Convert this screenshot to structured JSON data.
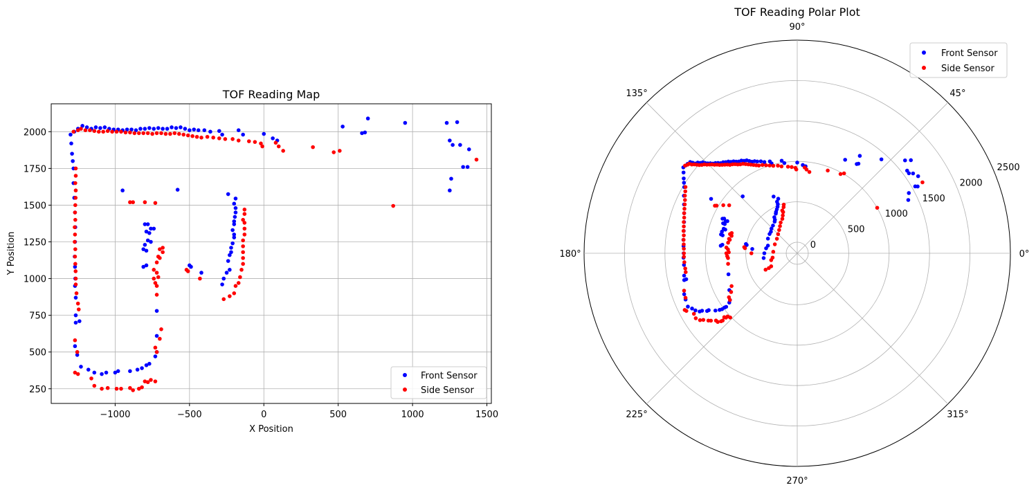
{
  "chart_data": [
    {
      "type": "scatter",
      "title": "TOF Reading Map",
      "xlabel": "X Position",
      "ylabel": "Y Position",
      "xlim": [
        -1430,
        1530
      ],
      "ylim": [
        150,
        2190
      ],
      "xticks": [
        -1000,
        -500,
        0,
        500,
        1000,
        1500
      ],
      "xtick_labels": [
        "−1000",
        "−500",
        "0",
        "500",
        "1000",
        "1500"
      ],
      "yticks": [
        250,
        500,
        750,
        1000,
        1250,
        1500,
        1750,
        2000
      ],
      "ytick_labels": [
        "250",
        "500",
        "750",
        "1000",
        "1250",
        "1500",
        "1750",
        "2000"
      ],
      "grid": true,
      "legend_position": "lower-right",
      "series": [
        {
          "name": "Front Sensor",
          "color": "#0000ff",
          "points": [
            [
              -1300,
              1980
            ],
            [
              -1295,
              1920
            ],
            [
              -1290,
              1850
            ],
            [
              -1285,
              1800
            ],
            [
              -1280,
              1750
            ],
            [
              -1275,
              2000
            ],
            [
              -1250,
              2020
            ],
            [
              -1220,
              2040
            ],
            [
              -1190,
              2030
            ],
            [
              -1160,
              2020
            ],
            [
              -1130,
              2030
            ],
            [
              -1100,
              2025
            ],
            [
              -1070,
              2030
            ],
            [
              -1040,
              2020
            ],
            [
              -1010,
              2015
            ],
            [
              -980,
              2015
            ],
            [
              -950,
              2010
            ],
            [
              -920,
              2015
            ],
            [
              -890,
              2015
            ],
            [
              -860,
              2010
            ],
            [
              -830,
              2020
            ],
            [
              -800,
              2020
            ],
            [
              -770,
              2025
            ],
            [
              -740,
              2020
            ],
            [
              -710,
              2025
            ],
            [
              -680,
              2020
            ],
            [
              -650,
              2020
            ],
            [
              -620,
              2030
            ],
            [
              -590,
              2025
            ],
            [
              -560,
              2030
            ],
            [
              -530,
              2020
            ],
            [
              -500,
              2010
            ],
            [
              -470,
              2015
            ],
            [
              -440,
              2010
            ],
            [
              -400,
              2010
            ],
            [
              -360,
              2000
            ],
            [
              -300,
              2005
            ],
            [
              -280,
              1980
            ],
            [
              -170,
              2010
            ],
            [
              -140,
              1980
            ],
            [
              0,
              1985
            ],
            [
              60,
              1955
            ],
            [
              90,
              1940
            ],
            [
              530,
              2035
            ],
            [
              660,
              1990
            ],
            [
              680,
              1995
            ],
            [
              700,
              2090
            ],
            [
              950,
              2060
            ],
            [
              1230,
              2060
            ],
            [
              1300,
              2065
            ],
            [
              1250,
              1940
            ],
            [
              1270,
              1910
            ],
            [
              1320,
              1910
            ],
            [
              1380,
              1880
            ],
            [
              1340,
              1760
            ],
            [
              1370,
              1760
            ],
            [
              1260,
              1680
            ],
            [
              1250,
              1600
            ],
            [
              -1280,
              1650
            ],
            [
              -1275,
              1550
            ],
            [
              -1270,
              1450
            ],
            [
              -1268,
              1350
            ],
            [
              -1270,
              1250
            ],
            [
              -1272,
              1150
            ],
            [
              -1270,
              1080
            ],
            [
              -1268,
              1000
            ],
            [
              -1270,
              950
            ],
            [
              -1265,
              870
            ],
            [
              -1265,
              750
            ],
            [
              -1265,
              700
            ],
            [
              -1270,
              540
            ],
            [
              -1255,
              480
            ],
            [
              -1240,
              710
            ],
            [
              -1230,
              400
            ],
            [
              -1180,
              380
            ],
            [
              -1140,
              360
            ],
            [
              -1090,
              350
            ],
            [
              -1060,
              360
            ],
            [
              -1000,
              360
            ],
            [
              -980,
              370
            ],
            [
              -900,
              370
            ],
            [
              -850,
              380
            ],
            [
              -820,
              390
            ],
            [
              -790,
              410
            ],
            [
              -770,
              420
            ],
            [
              -730,
              470
            ],
            [
              -720,
              500
            ],
            [
              -720,
              610
            ],
            [
              -720,
              780
            ],
            [
              -950,
              1600
            ],
            [
              -580,
              1605
            ],
            [
              -800,
              1370
            ],
            [
              -780,
              1370
            ],
            [
              -760,
              1340
            ],
            [
              -740,
              1340
            ],
            [
              -790,
              1320
            ],
            [
              -770,
              1310
            ],
            [
              -780,
              1260
            ],
            [
              -760,
              1250
            ],
            [
              -800,
              1230
            ],
            [
              -810,
              1200
            ],
            [
              -790,
              1190
            ],
            [
              -810,
              1080
            ],
            [
              -790,
              1090
            ],
            [
              -500,
              1090
            ],
            [
              -490,
              1080
            ],
            [
              -420,
              1040
            ],
            [
              -240,
              1575
            ],
            [
              -190,
              1545
            ],
            [
              -200,
              1510
            ],
            [
              -190,
              1480
            ],
            [
              -190,
              1450
            ],
            [
              -195,
              1420
            ],
            [
              -200,
              1390
            ],
            [
              -200,
              1370
            ],
            [
              -210,
              1330
            ],
            [
              -200,
              1300
            ],
            [
              -200,
              1280
            ],
            [
              -210,
              1240
            ],
            [
              -220,
              1210
            ],
            [
              -220,
              1180
            ],
            [
              -230,
              1160
            ],
            [
              -240,
              1120
            ],
            [
              -230,
              1060
            ],
            [
              -250,
              1040
            ],
            [
              -270,
              1000
            ],
            [
              -280,
              960
            ]
          ]
        },
        {
          "name": "Side Sensor",
          "color": "#ff0000",
          "points": [
            [
              -1280,
              2000
            ],
            [
              -1250,
              2010
            ],
            [
              -1230,
              2020
            ],
            [
              -1200,
              2010
            ],
            [
              -1170,
              2010
            ],
            [
              -1140,
              2005
            ],
            [
              -1110,
              2000
            ],
            [
              -1080,
              2000
            ],
            [
              -1050,
              2005
            ],
            [
              -1020,
              2000
            ],
            [
              -990,
              2000
            ],
            [
              -960,
              2000
            ],
            [
              -930,
              1995
            ],
            [
              -900,
              1995
            ],
            [
              -870,
              1990
            ],
            [
              -840,
              1990
            ],
            [
              -810,
              1990
            ],
            [
              -780,
              1990
            ],
            [
              -750,
              1985
            ],
            [
              -720,
              1990
            ],
            [
              -690,
              1990
            ],
            [
              -660,
              1985
            ],
            [
              -630,
              1985
            ],
            [
              -600,
              1990
            ],
            [
              -570,
              1985
            ],
            [
              -540,
              1980
            ],
            [
              -510,
              1975
            ],
            [
              -480,
              1970
            ],
            [
              -450,
              1965
            ],
            [
              -420,
              1960
            ],
            [
              -380,
              1965
            ],
            [
              -340,
              1960
            ],
            [
              -300,
              1955
            ],
            [
              -260,
              1950
            ],
            [
              -210,
              1950
            ],
            [
              -170,
              1940
            ],
            [
              -100,
              1935
            ],
            [
              -60,
              1930
            ],
            [
              -20,
              1920
            ],
            [
              -10,
              1900
            ],
            [
              80,
              1925
            ],
            [
              100,
              1900
            ],
            [
              130,
              1870
            ],
            [
              330,
              1895
            ],
            [
              470,
              1860
            ],
            [
              510,
              1870
            ],
            [
              870,
              1495
            ],
            [
              1430,
              1810
            ],
            [
              -1265,
              1750
            ],
            [
              -1265,
              1700
            ],
            [
              -1268,
              1650
            ],
            [
              -1265,
              1600
            ],
            [
              -1266,
              1550
            ],
            [
              -1268,
              1500
            ],
            [
              -1270,
              1450
            ],
            [
              -1268,
              1400
            ],
            [
              -1272,
              1350
            ],
            [
              -1270,
              1300
            ],
            [
              -1272,
              1250
            ],
            [
              -1268,
              1200
            ],
            [
              -1270,
              1150
            ],
            [
              -1268,
              1100
            ],
            [
              -1266,
              1050
            ],
            [
              -1265,
              1000
            ],
            [
              -1265,
              960
            ],
            [
              -1260,
              900
            ],
            [
              -1250,
              830
            ],
            [
              -1245,
              790
            ],
            [
              -1270,
              580
            ],
            [
              -1255,
              500
            ],
            [
              -1250,
              350
            ],
            [
              -1270,
              360
            ],
            [
              -1160,
              320
            ],
            [
              -1140,
              270
            ],
            [
              -1090,
              250
            ],
            [
              -1050,
              255
            ],
            [
              -990,
              250
            ],
            [
              -960,
              250
            ],
            [
              -900,
              255
            ],
            [
              -880,
              240
            ],
            [
              -840,
              250
            ],
            [
              -820,
              260
            ],
            [
              -800,
              300
            ],
            [
              -780,
              295
            ],
            [
              -760,
              310
            ],
            [
              -730,
              300
            ],
            [
              -720,
              500
            ],
            [
              -730,
              530
            ],
            [
              -700,
              590
            ],
            [
              -690,
              655
            ],
            [
              -900,
              1520
            ],
            [
              -880,
              1520
            ],
            [
              -800,
              1520
            ],
            [
              -730,
              1515
            ],
            [
              -700,
              1200
            ],
            [
              -680,
              1210
            ],
            [
              -680,
              1180
            ],
            [
              -710,
              1150
            ],
            [
              -700,
              1140
            ],
            [
              -720,
              1110
            ],
            [
              -740,
              1060
            ],
            [
              -720,
              1040
            ],
            [
              -710,
              1010
            ],
            [
              -740,
              1000
            ],
            [
              -730,
              970
            ],
            [
              -720,
              950
            ],
            [
              -720,
              890
            ],
            [
              -520,
              1060
            ],
            [
              -510,
              1050
            ],
            [
              -430,
              1000
            ],
            [
              -130,
              1470
            ],
            [
              -130,
              1440
            ],
            [
              -140,
              1400
            ],
            [
              -130,
              1380
            ],
            [
              -130,
              1340
            ],
            [
              -130,
              1300
            ],
            [
              -140,
              1260
            ],
            [
              -140,
              1220
            ],
            [
              -140,
              1180
            ],
            [
              -140,
              1140
            ],
            [
              -140,
              1100
            ],
            [
              -150,
              1060
            ],
            [
              -160,
              1010
            ],
            [
              -170,
              970
            ],
            [
              -190,
              950
            ],
            [
              -200,
              900
            ],
            [
              -230,
              880
            ],
            [
              -270,
              860
            ]
          ]
        }
      ]
    },
    {
      "type": "scatter",
      "subtype": "polar",
      "title": "TOF Reading Polar Plot",
      "r_range": [
        0,
        2500
      ],
      "r_ticks": [
        0,
        500,
        1000,
        1500,
        2000,
        2500
      ],
      "r_tick_labels": [
        "0",
        "500",
        "1000",
        "1500",
        "2000",
        "2500"
      ],
      "r_label_angle_deg": 22.5,
      "theta_ticks_deg": [
        0,
        45,
        90,
        135,
        180,
        225,
        270,
        315
      ],
      "theta_tick_labels": [
        "0°",
        "45°",
        "90°",
        "135°",
        "180°",
        "225°",
        "270°",
        "315°"
      ],
      "grid": true,
      "legend_position": "upper-right",
      "series_source": "Cartesian map points converted to polar (theta = atan2(y - 1000, x), r = distance) ",
      "origin_offset_y": 1000
    }
  ],
  "legend": {
    "front_label": "Front Sensor",
    "side_label": "Side Sensor"
  }
}
